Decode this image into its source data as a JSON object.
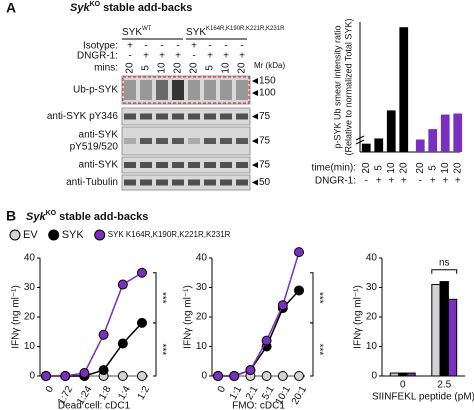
{
  "panels": [
    "A",
    "B"
  ],
  "blot": {
    "title_italic": "Syk",
    "title_sup": "KO",
    "title_rest": "stable add-backs",
    "groups": [
      {
        "name": "SYK",
        "sup": "WT"
      },
      {
        "name": "SYK",
        "sup": "K164R,K190R,K221R,K231R"
      }
    ],
    "rows": [
      {
        "label": "Isotype:",
        "marks": [
          "+",
          "-",
          "-",
          "-",
          "+",
          "-",
          "-",
          "-"
        ]
      },
      {
        "label": "DNGR-1:",
        "marks": [
          "-",
          "+",
          "+",
          "+",
          "-",
          "+",
          "+",
          "+"
        ]
      },
      {
        "label": "mins:",
        "marks": [
          "20",
          "5",
          "10",
          "20",
          "20",
          "5",
          "10",
          "20"
        ]
      }
    ],
    "mr_label": "Mr (kDa)",
    "blots": [
      {
        "label": [
          "Ub-p-SYK"
        ],
        "markers": [
          150,
          100
        ]
      },
      {
        "label": [
          "anti-SYK pY346"
        ],
        "markers": [
          75
        ]
      },
      {
        "label": [
          "anti-SYK",
          "pY519/520"
        ],
        "markers": [
          75
        ]
      },
      {
        "label": [
          "anti-SYK"
        ],
        "markers": [
          75
        ]
      },
      {
        "label": [
          "anti-Tubulin"
        ],
        "markers": [
          50
        ]
      }
    ]
  },
  "panel_b_title_italic": "Syk",
  "panel_b_title_sup": "KO",
  "panel_b_title_rest": "stable add-backs",
  "chart_data": [
    {
      "type": "bar",
      "ylabel": [
        "p-SYK Ub smear intensity ratio",
        "(Relative to normalized Total SYK)"
      ],
      "categories": [
        "20",
        "5",
        "10",
        "20",
        "20",
        "5",
        "10",
        "20"
      ],
      "row_labels": [
        "time(min):",
        "DNGR-1:"
      ],
      "dngr1": [
        "-",
        "+",
        "+",
        "+",
        "-",
        "+",
        "+",
        "+"
      ],
      "values": [
        0.08,
        0.13,
        0.4,
        1.2,
        0.12,
        0.22,
        0.36,
        0.37
      ],
      "colors": [
        "#000000",
        "#000000",
        "#000000",
        "#000000",
        "#7b2fbe",
        "#7b2fbe",
        "#7b2fbe",
        "#7b2fbe"
      ],
      "ylim": [
        0,
        1.25
      ]
    },
    {
      "type": "line",
      "ylabel": "IFNγ (ng ml⁻¹)",
      "xlabel": "Dead cell: cDC1",
      "categories": [
        "0",
        "1:72",
        "1:24",
        "1:8",
        "1:4",
        "1:2"
      ],
      "series": [
        {
          "name": "EV",
          "color": "#d3d3d3",
          "values": [
            0,
            0,
            0,
            0,
            0,
            0
          ]
        },
        {
          "name": "SYK",
          "color": "#000000",
          "values": [
            0,
            0,
            0,
            2,
            11,
            18
          ]
        },
        {
          "name": "SYK K164R,K190R,K221R,K231R",
          "color": "#7b2fbe",
          "values": [
            0,
            0,
            1,
            14,
            31,
            35
          ]
        }
      ],
      "ylim": [
        0,
        40
      ],
      "yticks": [
        0,
        10,
        20,
        30,
        40
      ],
      "annotations": [
        "***",
        "***"
      ]
    },
    {
      "type": "line",
      "ylabel": "IFNγ (ng ml⁻¹)",
      "xlabel": "FMO: cDC1",
      "categories": [
        "0",
        "1:1",
        "2:1",
        "5:1",
        "10:1",
        "20:1"
      ],
      "series": [
        {
          "name": "EV",
          "color": "#d3d3d3",
          "values": [
            0,
            0,
            0,
            0,
            0,
            0
          ]
        },
        {
          "name": "SYK",
          "color": "#000000",
          "values": [
            0,
            0,
            2,
            10,
            23,
            29
          ]
        },
        {
          "name": "SYK K164R,K190R,K221R,K231R",
          "color": "#7b2fbe",
          "values": [
            0,
            0,
            2,
            12,
            24,
            42
          ]
        }
      ],
      "ylim": [
        0,
        40
      ],
      "yticks": [
        0,
        10,
        20,
        30,
        40
      ],
      "annotations": [
        "***",
        "***"
      ]
    },
    {
      "type": "groupbar",
      "ylabel": "IFNγ (ng ml⁻¹)",
      "xlabel": "SIINFEKL peptide (pM)",
      "categories": [
        "0",
        "2.5"
      ],
      "series": [
        {
          "name": "EV",
          "color": "#d3d3d3",
          "values": [
            1,
            31
          ]
        },
        {
          "name": "SYK",
          "color": "#000000",
          "values": [
            1,
            32
          ]
        },
        {
          "name": "SYK K164R,K190R,K221R,K231R",
          "color": "#7b2fbe",
          "values": [
            1,
            26
          ]
        }
      ],
      "ylim": [
        0,
        40
      ],
      "yticks": [
        0,
        10,
        20,
        30,
        40
      ],
      "annotations": [
        "ns"
      ]
    }
  ]
}
